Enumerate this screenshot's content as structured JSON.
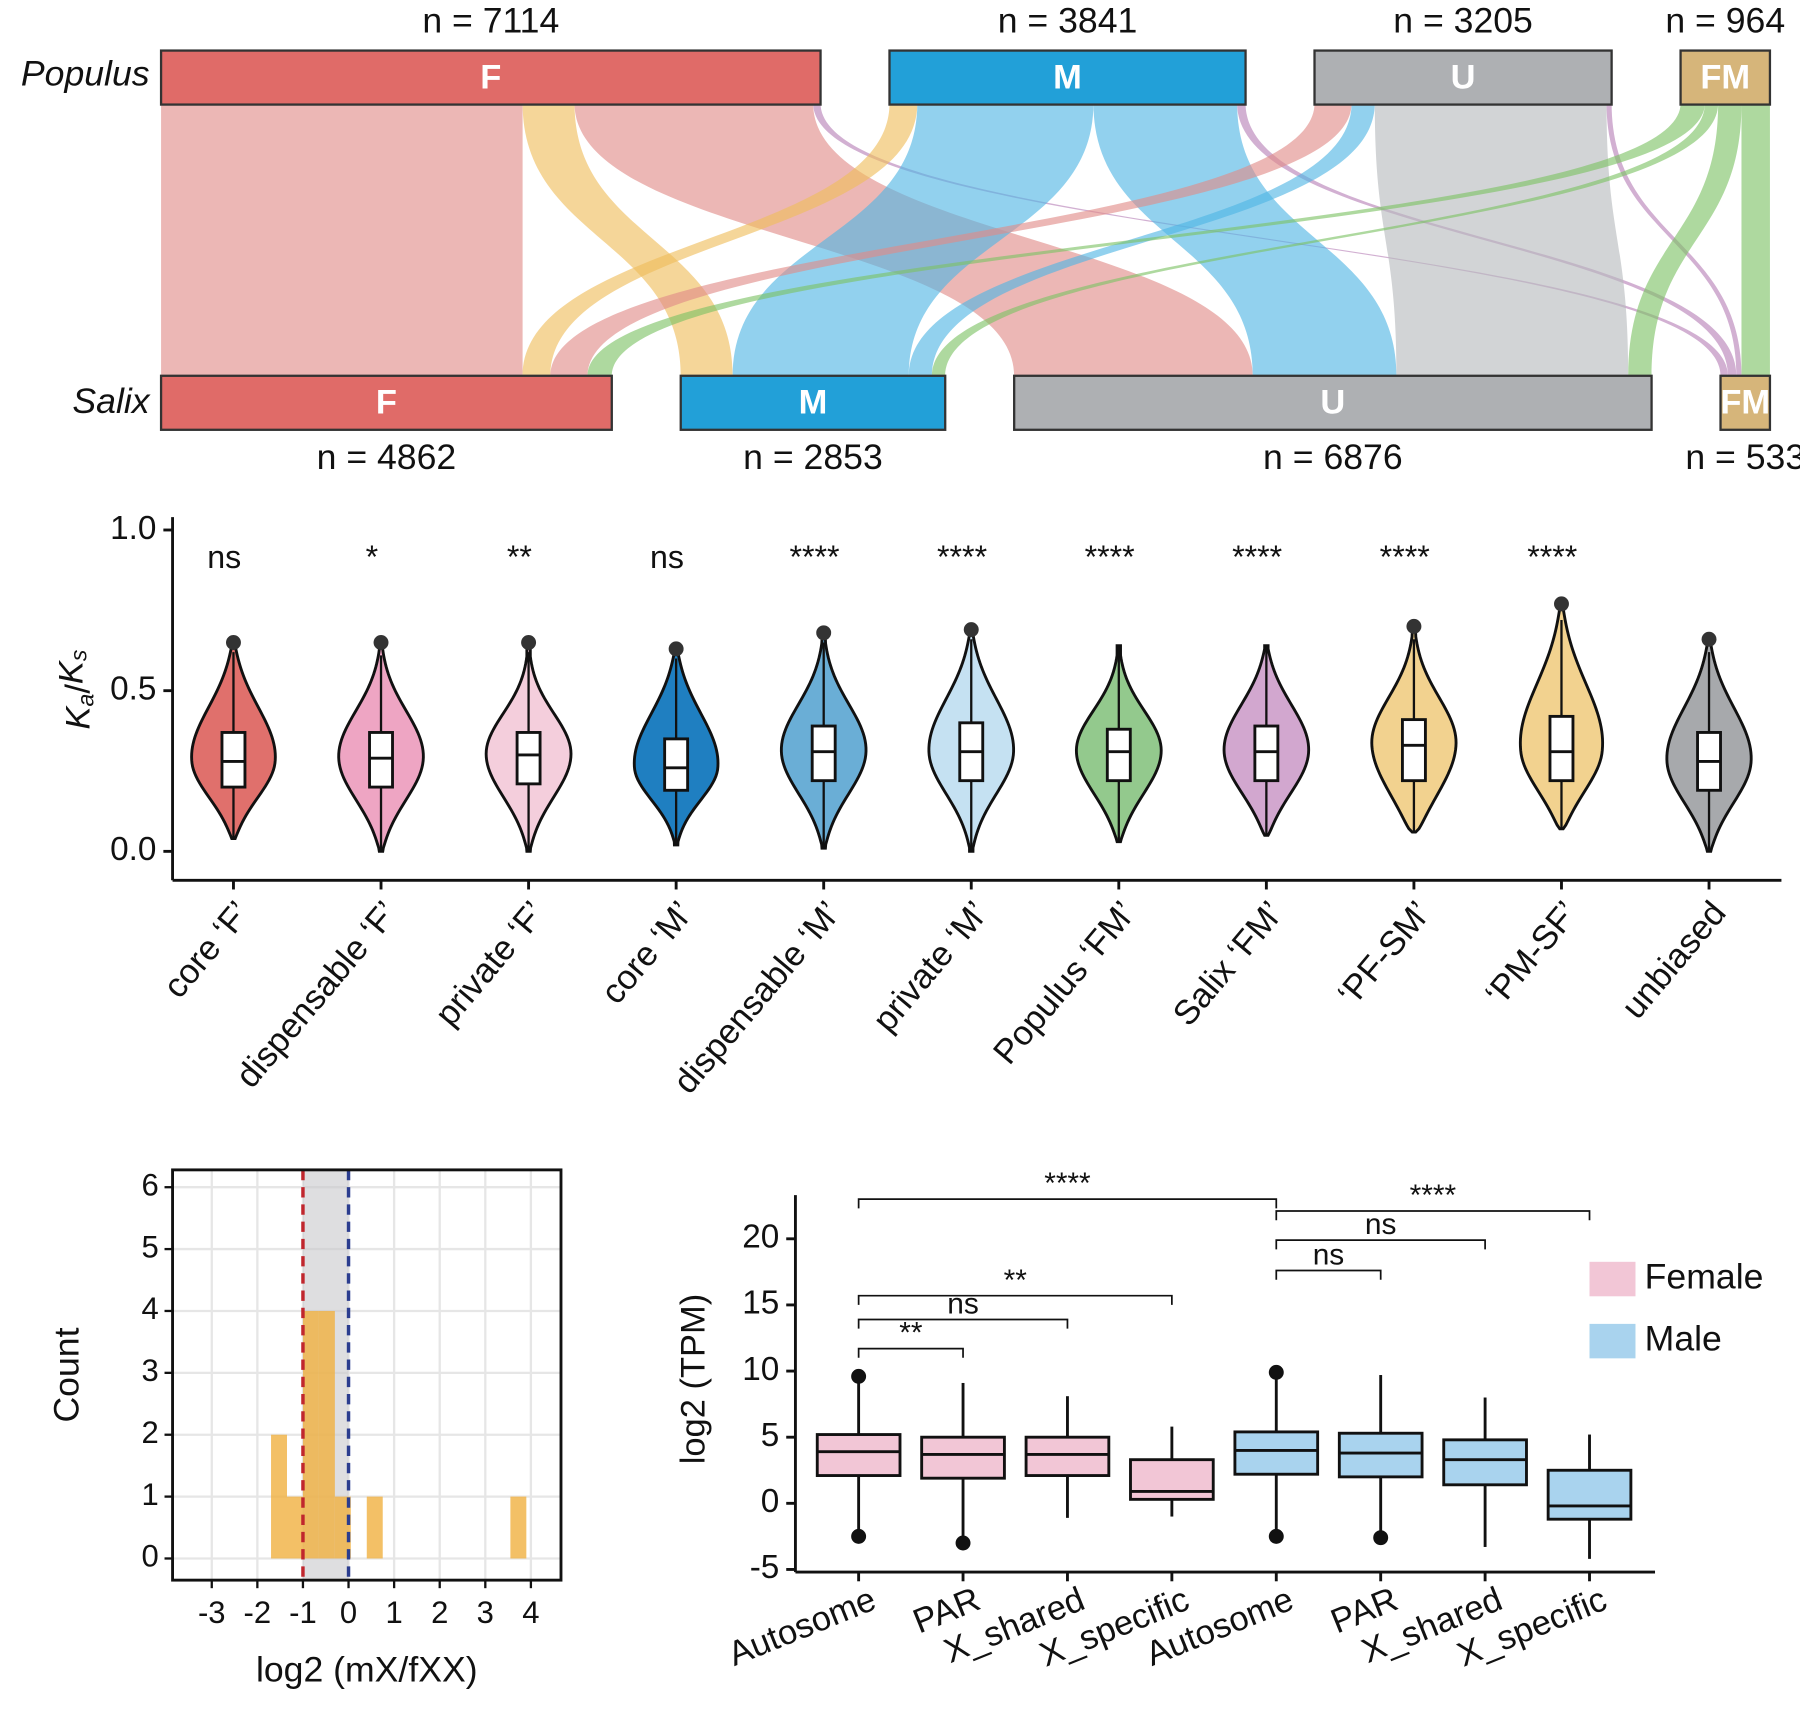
{
  "chart_data": [
    {
      "type": "sankey",
      "rows": [
        "Populus",
        "Salix"
      ],
      "top": [
        {
          "name": "F",
          "value": 7114,
          "label": "n = 7114",
          "color": "#e06b68"
        },
        {
          "name": "M",
          "value": 3841,
          "label": "n = 3841",
          "color": "#22a0d8"
        },
        {
          "name": "U",
          "value": 3205,
          "label": "n = 3205",
          "color": "#aeb0b3"
        },
        {
          "name": "FM",
          "value": 964,
          "label": "n = 964",
          "color": "#d6b57a"
        }
      ],
      "bottom": [
        {
          "name": "F",
          "value": 4862,
          "label": "n = 4862",
          "color": "#e06b68"
        },
        {
          "name": "M",
          "value": 2853,
          "label": "n = 2853",
          "color": "#22a0d8"
        },
        {
          "name": "U",
          "value": 6876,
          "label": "n = 6876",
          "color": "#aeb0b3"
        },
        {
          "name": "FM",
          "value": 533,
          "label": "n = 533",
          "color": "#d6b57a"
        }
      ],
      "flows": [
        [
          3900,
          560,
          2574,
          80
        ],
        [
          300,
          1900,
          1550,
          91
        ],
        [
          400,
          250,
          2500,
          55
        ],
        [
          262,
          143,
          252,
          307
        ]
      ],
      "flow_colors": [
        [
          "#e08a88",
          "#efbd5a",
          "#e08a88",
          "#b67fb7"
        ],
        [
          "#efbd5a",
          "#4fb4e3",
          "#4fb4e3",
          "#b67fb7"
        ],
        [
          "#e08a88",
          "#4fb4e3",
          "#b6babd",
          "#b67fb7"
        ],
        [
          "#7cc164",
          "#7cc164",
          "#7cc164",
          "#7cc164"
        ]
      ]
    },
    {
      "type": "violin",
      "ylabel": [
        "K",
        "a",
        "/",
        "K",
        "s"
      ],
      "ylim": [
        -0.09,
        1.04
      ],
      "yticks": [
        {
          "value": 0,
          "label": "0.0"
        },
        {
          "value": 0.5,
          "label": "0.5"
        },
        {
          "value": 1,
          "label": "1.0"
        }
      ],
      "categories": [
        "core ‘F’",
        "dispensable ‘F’",
        "private ‘F’",
        "core ‘M’",
        "dispensable ‘M’",
        "private ‘M’",
        "Populus ‘FM’",
        "Salix ‘FM’",
        "‘PF-SM’",
        "‘PM-SF’",
        "unbiased"
      ],
      "sig": [
        "ns",
        "*",
        "**",
        "ns",
        "****",
        "****",
        "****",
        "****",
        "****",
        "****",
        null
      ],
      "colors": [
        "#e0706c",
        "#eea5c3",
        "#f4cedc",
        "#1f7fc1",
        "#6aaed6",
        "#c5e1f2",
        "#93c98d",
        "#d2a7cf",
        "#f2d28f",
        "#f2d28f",
        "#a7a9ac"
      ],
      "stats": [
        {
          "low": 0.04,
          "q1": 0.2,
          "median": 0.28,
          "q3": 0.37,
          "high": 0.62,
          "outlier": 0.65
        },
        {
          "low": 0.0,
          "q1": 0.2,
          "median": 0.29,
          "q3": 0.37,
          "high": 0.61,
          "outlier": 0.65
        },
        {
          "low": 0.0,
          "q1": 0.21,
          "median": 0.3,
          "q3": 0.37,
          "high": 0.62,
          "outlier": 0.65
        },
        {
          "low": 0.02,
          "q1": 0.19,
          "median": 0.26,
          "q3": 0.35,
          "high": 0.6,
          "outlier": 0.63
        },
        {
          "low": 0.01,
          "q1": 0.22,
          "median": 0.31,
          "q3": 0.39,
          "high": 0.65,
          "outlier": 0.68
        },
        {
          "low": 0.0,
          "q1": 0.22,
          "median": 0.31,
          "q3": 0.4,
          "high": 0.66,
          "outlier": 0.69
        },
        {
          "low": 0.03,
          "q1": 0.22,
          "median": 0.31,
          "q3": 0.38,
          "high": 0.64,
          "outlier": null
        },
        {
          "low": 0.05,
          "q1": 0.22,
          "median": 0.31,
          "q3": 0.39,
          "high": 0.64,
          "outlier": null
        },
        {
          "low": 0.06,
          "q1": 0.22,
          "median": 0.33,
          "q3": 0.41,
          "high": 0.66,
          "outlier": 0.7
        },
        {
          "low": 0.07,
          "q1": 0.22,
          "median": 0.31,
          "q3": 0.42,
          "high": 0.72,
          "outlier": 0.77
        },
        {
          "low": 0.0,
          "q1": 0.19,
          "median": 0.28,
          "q3": 0.37,
          "high": 0.62,
          "outlier": 0.66
        }
      ]
    },
    {
      "type": "histogram",
      "xlabel": "log2 (mX/fXX)",
      "ylabel": "Count",
      "xlim": [
        -3.86,
        4.66
      ],
      "ylim": [
        -0.35,
        6.28
      ],
      "xticks": [
        -3,
        -2,
        -1,
        0,
        1,
        2,
        3,
        4
      ],
      "yticks": [
        0,
        1,
        2,
        3,
        4,
        5,
        6
      ],
      "grid": true,
      "color": "#f0b040",
      "bins": [
        -1.7,
        -1.35,
        -1.0,
        -0.65,
        -0.3,
        0.05,
        0.4,
        0.75,
        1.1,
        1.45,
        1.8,
        2.15,
        2.5,
        2.85,
        3.2,
        3.55,
        3.9
      ],
      "counts": [
        2,
        1,
        4,
        4,
        1,
        0,
        1,
        0,
        0,
        0,
        0,
        0,
        0,
        0,
        0,
        1
      ],
      "shade": [
        -1,
        0
      ],
      "vlines": [
        {
          "value": -1,
          "color": "#c0262d"
        },
        {
          "value": 0,
          "color": "#2b3d8f"
        }
      ]
    },
    {
      "type": "box",
      "ylabel": "log2 (TPM)",
      "ylim": [
        -5.2,
        23.3
      ],
      "yticks": [
        -5,
        0,
        5,
        10,
        15,
        20
      ],
      "categories": [
        "Autosome",
        "PAR",
        "X_shared",
        "X_specific",
        "Autosome",
        "PAR",
        "X_shared",
        "X_specific"
      ],
      "series": [
        {
          "name": "Female",
          "color": "#f2c6d6",
          "values": [
            {
              "low": -2.2,
              "q1": 2.1,
              "median": 3.9,
              "q3": 5.2,
              "high": 9.5,
              "outliers": [
                9.6,
                -2.5
              ]
            },
            {
              "low": -2.6,
              "q1": 1.9,
              "median": 3.7,
              "q3": 5.0,
              "high": 9.1,
              "outliers": [
                -3.0
              ]
            },
            {
              "low": -1.1,
              "q1": 2.1,
              "median": 3.7,
              "q3": 5.0,
              "high": 8.1,
              "outliers": []
            },
            {
              "low": -1.0,
              "q1": 0.3,
              "median": 0.9,
              "q3": 3.3,
              "high": 5.8,
              "outliers": []
            }
          ]
        },
        {
          "name": "Male",
          "color": "#a9d3ee",
          "values": [
            {
              "low": -2.2,
              "q1": 2.2,
              "median": 4.0,
              "q3": 5.4,
              "high": 9.8,
              "outliers": [
                9.9,
                -2.5
              ]
            },
            {
              "low": -2.4,
              "q1": 2.0,
              "median": 3.8,
              "q3": 5.3,
              "high": 9.7,
              "outliers": [
                -2.6
              ]
            },
            {
              "low": -3.3,
              "q1": 1.4,
              "median": 3.3,
              "q3": 4.8,
              "high": 8.0,
              "outliers": []
            },
            {
              "low": -4.2,
              "q1": -1.2,
              "median": -0.2,
              "q3": 2.5,
              "high": 5.2,
              "outliers": []
            }
          ]
        }
      ],
      "brackets": [
        {
          "from": 0,
          "to": 1,
          "y": 11.7,
          "label": "**"
        },
        {
          "from": 0,
          "to": 2,
          "y": 13.9,
          "label": "ns"
        },
        {
          "from": 0,
          "to": 3,
          "y": 15.7,
          "label": "**"
        },
        {
          "from": 0,
          "to": 4,
          "y": 23.0,
          "label": "****"
        },
        {
          "from": 4,
          "to": 5,
          "y": 17.6,
          "label": "ns"
        },
        {
          "from": 4,
          "to": 6,
          "y": 19.9,
          "label": "ns"
        },
        {
          "from": 4,
          "to": 7,
          "y": 22.1,
          "label": "****"
        }
      ]
    }
  ]
}
